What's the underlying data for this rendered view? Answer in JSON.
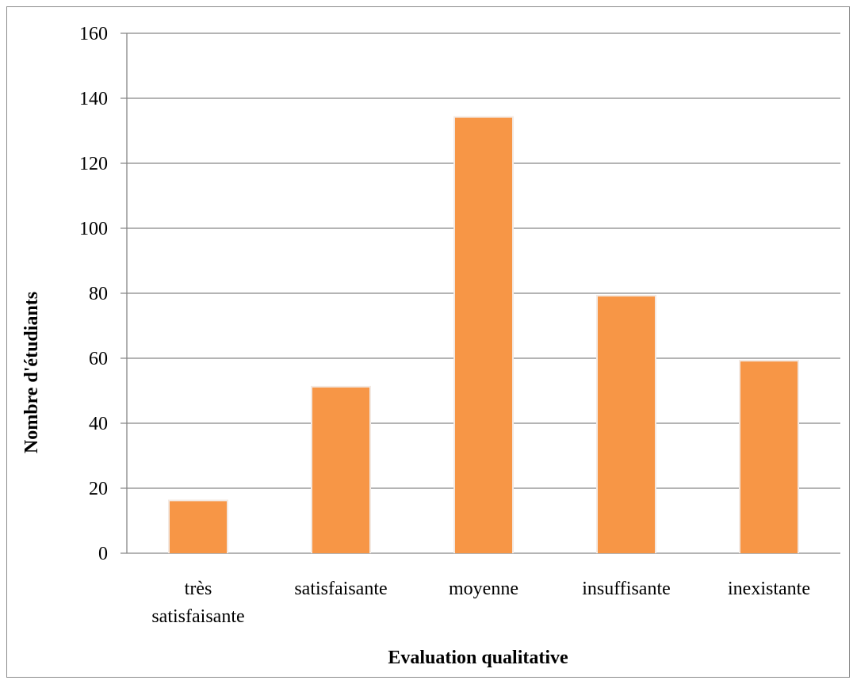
{
  "chart_data": {
    "type": "bar",
    "categories": [
      "très satisfaisante",
      "satisfaisante",
      "moyenne",
      "insuffisante",
      "inexistante"
    ],
    "category_label_lines": [
      [
        "très",
        "satisfaisante"
      ],
      [
        "satisfaisante"
      ],
      [
        "moyenne"
      ],
      [
        "insuffisante"
      ],
      [
        "inexistante"
      ]
    ],
    "values": [
      16,
      51,
      134,
      79,
      59
    ],
    "title": "",
    "xlabel": "Evaluation qualitative",
    "ylabel": "Nombre d'étudiants",
    "ylim": [
      0,
      160
    ],
    "yticks": [
      0,
      20,
      40,
      60,
      80,
      100,
      120,
      140,
      160
    ],
    "grid": true,
    "legend": "none",
    "bar_color": "#F79646",
    "grid_color": "#868686"
  }
}
